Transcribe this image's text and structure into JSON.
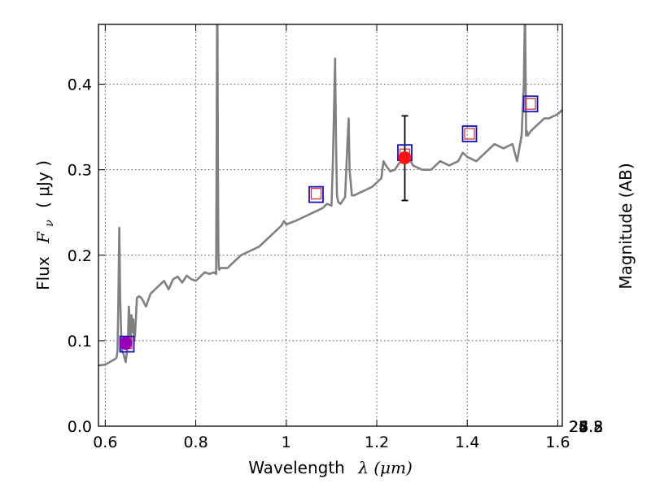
{
  "chart_data": {
    "type": "line",
    "xlabel_text": "Wavelength",
    "xlabel_math": "λ (μm)",
    "ylabel_text": "Flux",
    "ylabel_math": "F",
    "ylabel_sub": "ν",
    "ylabel_unit": "( μJy )",
    "y2label": "Magnitude (AB)",
    "xlim": [
      0.585,
      1.61
    ],
    "ylim": [
      0.0,
      0.47
    ],
    "grid": true,
    "x_ticks": [
      {
        "v": 0.6,
        "label": "0.6"
      },
      {
        "v": 0.8,
        "label": "0.8"
      },
      {
        "v": 1.0,
        "label": "1"
      },
      {
        "v": 1.2,
        "label": "1.2"
      },
      {
        "v": 1.4,
        "label": "1.4"
      },
      {
        "v": 1.6,
        "label": "1.6"
      }
    ],
    "y_ticks": [
      {
        "v": 0.0,
        "label": "0.0"
      },
      {
        "v": 0.1,
        "label": "0.1"
      },
      {
        "v": 0.2,
        "label": "0.2"
      },
      {
        "v": 0.3,
        "label": "0.3"
      },
      {
        "v": 0.4,
        "label": "0.4"
      }
    ],
    "y2_ticks": [
      {
        "mag": 24.8,
        "label": "24.8"
      },
      {
        "mag": 25.0,
        "label": "25"
      },
      {
        "mag": 25.2,
        "label": "25.2"
      },
      {
        "mag": 25.5,
        "label": "25.5"
      },
      {
        "mag": 26.0,
        "label": "26"
      },
      {
        "mag": 26.5,
        "label": "26.5"
      },
      {
        "mag": 27.0,
        "label": "27"
      },
      {
        "mag": 28.0,
        "label": "28"
      }
    ],
    "mag_zero_point_ujy": 3630.78,
    "colors": {
      "spectrum": "#808080",
      "model_square": "#dd3333",
      "obs_square": "#1111cc",
      "hst_point": "#ff1111",
      "ground_point": "#9900bb",
      "errorbar": "#000000",
      "grid": "#555555"
    },
    "series": [
      {
        "kind": "spectrum",
        "x": [
          0.585,
          0.6,
          0.61,
          0.62,
          0.625,
          0.627,
          0.629,
          0.631,
          0.633,
          0.636,
          0.64,
          0.645,
          0.65,
          0.652,
          0.654,
          0.656,
          0.658,
          0.66,
          0.662,
          0.664,
          0.666,
          0.67,
          0.675,
          0.68,
          0.69,
          0.7,
          0.71,
          0.72,
          0.73,
          0.74,
          0.75,
          0.76,
          0.77,
          0.78,
          0.79,
          0.8,
          0.81,
          0.82,
          0.83,
          0.84,
          0.845,
          0.846,
          0.847,
          0.848,
          0.849,
          0.85,
          0.851,
          0.852,
          0.853,
          0.86,
          0.87,
          0.88,
          0.89,
          0.9,
          0.92,
          0.94,
          0.96,
          0.98,
          0.99,
          0.995,
          1.0,
          1.02,
          1.04,
          1.06,
          1.08,
          1.09,
          1.1,
          1.103,
          1.106,
          1.108,
          1.11,
          1.112,
          1.115,
          1.12,
          1.13,
          1.135,
          1.138,
          1.14,
          1.145,
          1.15,
          1.17,
          1.19,
          1.2,
          1.21,
          1.215,
          1.22,
          1.23,
          1.24,
          1.25,
          1.26,
          1.27,
          1.28,
          1.3,
          1.32,
          1.34,
          1.36,
          1.38,
          1.39,
          1.4,
          1.42,
          1.44,
          1.46,
          1.48,
          1.5,
          1.51,
          1.52,
          1.525,
          1.527,
          1.528,
          1.53,
          1.532,
          1.534,
          1.54,
          1.55,
          1.56,
          1.57,
          1.58,
          1.6,
          1.61
        ],
        "y": [
          0.071,
          0.072,
          0.075,
          0.078,
          0.08,
          0.088,
          0.15,
          0.232,
          0.15,
          0.09,
          0.085,
          0.075,
          0.095,
          0.14,
          0.125,
          0.1,
          0.13,
          0.11,
          0.125,
          0.1,
          0.108,
          0.15,
          0.152,
          0.15,
          0.14,
          0.155,
          0.16,
          0.165,
          0.17,
          0.16,
          0.172,
          0.175,
          0.168,
          0.176,
          0.172,
          0.17,
          0.175,
          0.18,
          0.178,
          0.18,
          0.178,
          0.3,
          0.47,
          0.47,
          0.3,
          0.2,
          0.185,
          0.183,
          0.185,
          0.185,
          0.185,
          0.19,
          0.195,
          0.2,
          0.205,
          0.21,
          0.22,
          0.23,
          0.235,
          0.24,
          0.236,
          0.24,
          0.245,
          0.25,
          0.255,
          0.26,
          0.258,
          0.31,
          0.38,
          0.43,
          0.33,
          0.27,
          0.262,
          0.26,
          0.268,
          0.33,
          0.36,
          0.3,
          0.27,
          0.27,
          0.275,
          0.28,
          0.285,
          0.29,
          0.31,
          0.305,
          0.298,
          0.3,
          0.308,
          0.31,
          0.315,
          0.305,
          0.3,
          0.3,
          0.31,
          0.305,
          0.31,
          0.32,
          0.315,
          0.31,
          0.32,
          0.33,
          0.325,
          0.33,
          0.31,
          0.34,
          0.4,
          0.47,
          0.47,
          0.34,
          0.345,
          0.34,
          0.345,
          0.35,
          0.355,
          0.36,
          0.36,
          0.365,
          0.37
        ]
      },
      {
        "kind": "model_squares",
        "x": [
          0.648,
          1.066,
          1.262,
          1.405,
          1.54
        ],
        "y": [
          0.097,
          0.272,
          0.318,
          0.342,
          0.377
        ]
      },
      {
        "kind": "obs_squares",
        "x": [
          0.648,
          1.066,
          1.262,
          1.405,
          1.54
        ],
        "y": [
          0.096,
          0.271,
          0.32,
          0.342,
          0.377
        ]
      },
      {
        "kind": "hst_point",
        "x": [
          1.262
        ],
        "y": [
          0.314
        ],
        "yerr_low": [
          0.264
        ],
        "yerr_high": [
          0.363
        ]
      },
      {
        "kind": "ground_point",
        "x": [
          0.645
        ],
        "y": [
          0.097
        ]
      }
    ]
  }
}
